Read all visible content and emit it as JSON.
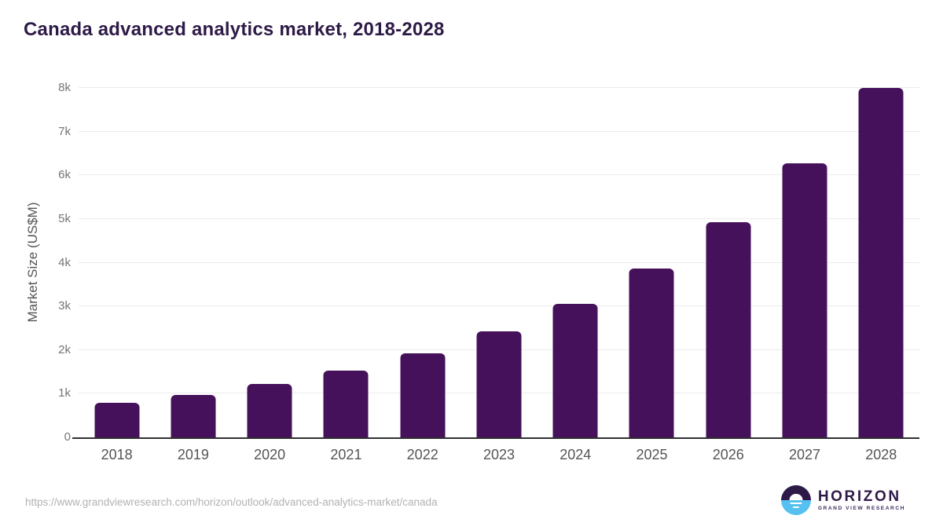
{
  "title": "Canada advanced analytics market, 2018-2028",
  "chart_data": {
    "type": "bar",
    "title": "Canada advanced analytics market, 2018-2028",
    "xlabel": "",
    "ylabel": "Market Size (US$M)",
    "ylim": [
      0,
      8000
    ],
    "grid": true,
    "legend": false,
    "bar_color": "#45115a",
    "categories": [
      "2018",
      "2019",
      "2020",
      "2021",
      "2022",
      "2023",
      "2024",
      "2025",
      "2026",
      "2027",
      "2028"
    ],
    "values": [
      790,
      970,
      1220,
      1530,
      1920,
      2430,
      3060,
      3870,
      4930,
      6280,
      8000
    ],
    "yticks": [
      {
        "label": "0",
        "value": 0
      },
      {
        "label": "1k",
        "value": 1000
      },
      {
        "label": "2k",
        "value": 2000
      },
      {
        "label": "3k",
        "value": 3000
      },
      {
        "label": "4k",
        "value": 4000
      },
      {
        "label": "5k",
        "value": 5000
      },
      {
        "label": "6k",
        "value": 6000
      },
      {
        "label": "7k",
        "value": 7000
      },
      {
        "label": "8k",
        "value": 8000
      }
    ]
  },
  "colors": {
    "bar": "#45115a",
    "title_text": "#2e1a47",
    "axis_text": "#555555",
    "tick_text": "#757575",
    "gridline": "#ececec",
    "baseline": "#303030",
    "url_text": "#b2b2b2",
    "logo_blue": "#56c0f0",
    "logo_purple": "#2e1a47"
  },
  "footer": {
    "source_url": "https://www.grandviewresearch.com/horizon/outlook/advanced-analytics-market/canada",
    "logo": {
      "title": "HORIZON",
      "subtitle": "GRAND VIEW RESEARCH"
    }
  }
}
